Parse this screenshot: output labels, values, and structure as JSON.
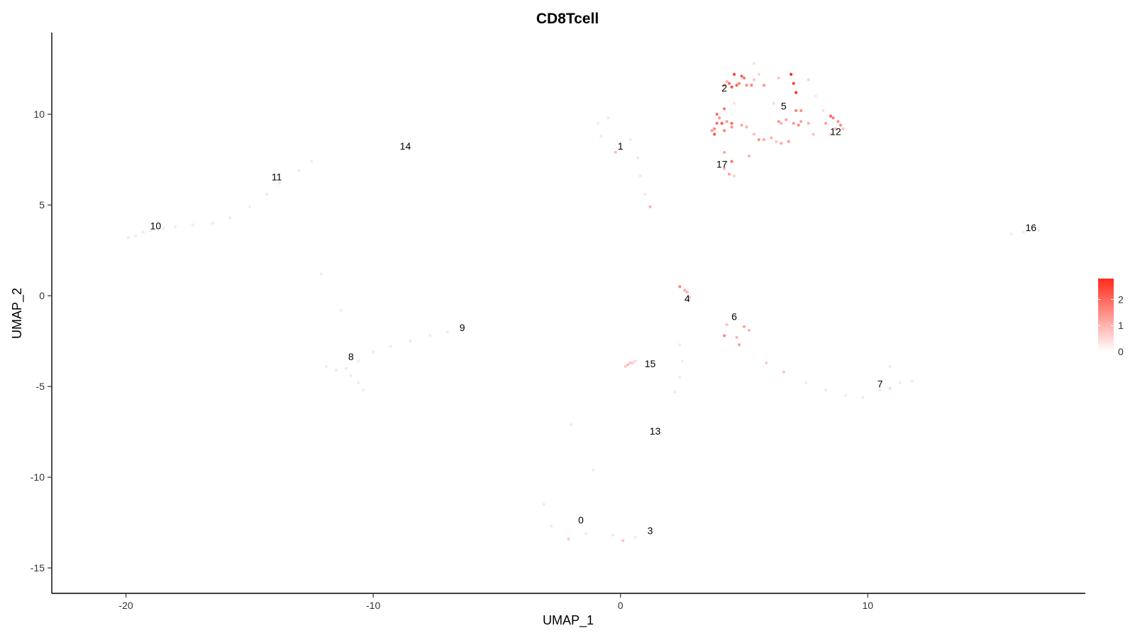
{
  "chart_data": {
    "type": "scatter",
    "title": "CD8Tcell",
    "xlabel": "UMAP_1",
    "ylabel": "UMAP_2",
    "xlim": [
      -23,
      18.8
    ],
    "ylim": [
      -16.4,
      14.5
    ],
    "x_ticks": [
      -20,
      -10,
      0,
      10
    ],
    "y_ticks": [
      -15,
      -10,
      -5,
      0,
      5,
      10
    ],
    "grid": false,
    "color_scale": {
      "low": "#ffffff",
      "high": "#ff2b1c",
      "min": 0,
      "max": 2.8,
      "ticks": [
        0,
        1,
        2
      ]
    },
    "cluster_labels": [
      {
        "label": "0",
        "x": -1.6,
        "y": -12.4
      },
      {
        "label": "1",
        "x": 0.0,
        "y": 8.2
      },
      {
        "label": "2",
        "x": 4.2,
        "y": 11.4
      },
      {
        "label": "3",
        "x": 1.2,
        "y": -13.0
      },
      {
        "label": "4",
        "x": 2.7,
        "y": -0.2
      },
      {
        "label": "5",
        "x": 6.6,
        "y": 10.4
      },
      {
        "label": "6",
        "x": 4.6,
        "y": -1.2
      },
      {
        "label": "7",
        "x": 10.5,
        "y": -4.9
      },
      {
        "label": "8",
        "x": -10.9,
        "y": -3.4
      },
      {
        "label": "9",
        "x": -6.4,
        "y": -1.8
      },
      {
        "label": "10",
        "x": -18.8,
        "y": 3.8
      },
      {
        "label": "11",
        "x": -13.9,
        "y": 6.5
      },
      {
        "label": "12",
        "x": 8.7,
        "y": 9.0
      },
      {
        "label": "13",
        "x": 1.4,
        "y": -7.5
      },
      {
        "label": "14",
        "x": -8.7,
        "y": 8.2
      },
      {
        "label": "15",
        "x": 1.2,
        "y": -3.8
      },
      {
        "label": "16",
        "x": 16.6,
        "y": 3.7
      },
      {
        "label": "17",
        "x": 4.1,
        "y": 7.2
      }
    ],
    "points": [
      [
        4.6,
        12.2,
        2.5
      ],
      [
        4.9,
        12.1,
        2.2
      ],
      [
        5.0,
        12.0,
        1.8
      ],
      [
        4.4,
        11.7,
        2.0
      ],
      [
        4.7,
        11.6,
        2.1
      ],
      [
        4.5,
        11.5,
        2.3
      ],
      [
        4.8,
        11.7,
        1.6
      ],
      [
        5.1,
        11.6,
        1.5
      ],
      [
        5.3,
        11.6,
        1.7
      ],
      [
        5.8,
        11.6,
        1.4
      ],
      [
        4.2,
        11.6,
        1.2
      ],
      [
        4.3,
        11.8,
        1.0
      ],
      [
        5.4,
        11.9,
        0.8
      ],
      [
        5.6,
        12.2,
        0.6
      ],
      [
        5.4,
        12.8,
        0.4
      ],
      [
        6.4,
        12.0,
        0.8
      ],
      [
        7.6,
        11.9,
        0.6
      ],
      [
        6.9,
        12.2,
        2.8
      ],
      [
        7.0,
        11.7,
        2.6
      ],
      [
        7.1,
        11.2,
        2.7
      ],
      [
        4.2,
        10.3,
        1.8
      ],
      [
        3.9,
        10.0,
        2.0
      ],
      [
        4.0,
        9.8,
        1.5
      ],
      [
        4.1,
        9.5,
        2.2
      ],
      [
        3.9,
        9.5,
        1.9
      ],
      [
        4.3,
        9.6,
        1.4
      ],
      [
        3.8,
        9.2,
        1.6
      ],
      [
        3.7,
        9.1,
        1.3
      ],
      [
        3.8,
        8.9,
        2.3
      ],
      [
        4.2,
        9.1,
        1.7
      ],
      [
        4.5,
        9.5,
        2.0
      ],
      [
        4.5,
        9.3,
        1.5
      ],
      [
        4.9,
        9.4,
        1.2
      ],
      [
        5.1,
        9.3,
        1.0
      ],
      [
        5.4,
        8.9,
        0.9
      ],
      [
        5.6,
        8.6,
        1.4
      ],
      [
        5.8,
        8.6,
        1.2
      ],
      [
        6.1,
        8.7,
        1.0
      ],
      [
        6.3,
        8.5,
        0.8
      ],
      [
        6.5,
        8.4,
        1.1
      ],
      [
        6.8,
        8.5,
        1.3
      ],
      [
        6.4,
        9.6,
        1.5
      ],
      [
        6.7,
        9.7,
        1.2
      ],
      [
        6.5,
        9.5,
        1.0
      ],
      [
        7.0,
        9.5,
        1.4
      ],
      [
        7.2,
        9.4,
        1.6
      ],
      [
        7.3,
        9.6,
        1.3
      ],
      [
        7.1,
        10.2,
        1.7
      ],
      [
        7.3,
        10.2,
        1.5
      ],
      [
        7.6,
        9.5,
        1.0
      ],
      [
        7.8,
        8.9,
        0.8
      ],
      [
        8.5,
        9.9,
        2.0
      ],
      [
        8.6,
        9.8,
        1.8
      ],
      [
        8.8,
        9.6,
        1.5
      ],
      [
        8.9,
        9.4,
        1.6
      ],
      [
        8.3,
        9.5,
        1.2
      ],
      [
        8.7,
        9.2,
        1.0
      ],
      [
        9.0,
        9.2,
        0.8
      ],
      [
        8.5,
        8.9,
        0.7
      ],
      [
        4.2,
        7.9,
        1.2
      ],
      [
        4.5,
        7.4,
        1.8
      ],
      [
        5.2,
        7.7,
        1.0
      ],
      [
        4.2,
        7.0,
        0.9
      ],
      [
        4.4,
        6.7,
        1.2
      ],
      [
        4.6,
        6.6,
        0.6
      ],
      [
        4.6,
        10.6,
        0.4
      ],
      [
        6.2,
        10.6,
        0.5
      ],
      [
        7.9,
        11.0,
        0.3
      ],
      [
        8.2,
        10.2,
        0.4
      ],
      [
        -0.2,
        7.9,
        0.9
      ],
      [
        1.2,
        4.9,
        1.0
      ],
      [
        2.4,
        0.5,
        1.6
      ],
      [
        2.6,
        0.3,
        1.2
      ],
      [
        2.7,
        0.2,
        1.0
      ],
      [
        2.8,
        -0.1,
        0.8
      ],
      [
        4.3,
        -1.6,
        0.8
      ],
      [
        5.0,
        -1.7,
        1.2
      ],
      [
        5.2,
        -1.9,
        1.0
      ],
      [
        4.2,
        -2.2,
        1.6
      ],
      [
        4.7,
        -2.3,
        1.0
      ],
      [
        4.8,
        -2.7,
        1.3
      ],
      [
        5.9,
        -3.7,
        0.7
      ],
      [
        6.6,
        -4.2,
        0.8
      ],
      [
        0.2,
        -3.9,
        0.7
      ],
      [
        0.3,
        -3.8,
        0.9
      ],
      [
        0.4,
        -3.7,
        0.8
      ],
      [
        0.5,
        -3.7,
        0.6
      ],
      [
        0.6,
        -3.6,
        0.5
      ],
      [
        10.9,
        -5.1,
        0.5
      ],
      [
        11.8,
        -4.7,
        0.3
      ],
      [
        -2.1,
        -13.4,
        0.7
      ],
      [
        0.1,
        -13.5,
        0.8
      ]
    ],
    "background_points": [
      [
        -19.9,
        3.2
      ],
      [
        -19.6,
        3.3
      ],
      [
        -19.3,
        3.5
      ],
      [
        -19.0,
        3.6
      ],
      [
        -18.5,
        3.7
      ],
      [
        -18.0,
        3.8
      ],
      [
        -17.3,
        3.9
      ],
      [
        -16.5,
        4.0
      ],
      [
        -15.8,
        4.3
      ],
      [
        -15.0,
        4.9
      ],
      [
        -14.3,
        5.6
      ],
      [
        -13.8,
        6.2
      ],
      [
        -13.0,
        6.9
      ],
      [
        -12.5,
        7.4
      ],
      [
        -11.9,
        -3.9
      ],
      [
        -11.5,
        -4.1
      ],
      [
        -11.1,
        -4.0
      ],
      [
        -10.6,
        -3.6
      ],
      [
        -10.0,
        -3.1
      ],
      [
        -9.3,
        -2.8
      ],
      [
        -8.5,
        -2.5
      ],
      [
        -7.7,
        -2.2
      ],
      [
        -7.0,
        -2.0
      ],
      [
        -10.9,
        -4.4
      ],
      [
        -10.6,
        -4.8
      ],
      [
        -10.4,
        -5.2
      ],
      [
        -0.9,
        9.5
      ],
      [
        -0.5,
        9.8
      ],
      [
        -0.8,
        8.8
      ],
      [
        0.4,
        8.6
      ],
      [
        0.7,
        7.6
      ],
      [
        0.8,
        6.6
      ],
      [
        1.0,
        5.6
      ],
      [
        2.4,
        -2.7
      ],
      [
        2.5,
        -3.6
      ],
      [
        2.4,
        -4.5
      ],
      [
        2.2,
        -5.3
      ],
      [
        7.5,
        -4.8
      ],
      [
        8.3,
        -5.2
      ],
      [
        9.1,
        -5.5
      ],
      [
        9.8,
        -5.6
      ],
      [
        10.5,
        -5.2
      ],
      [
        11.3,
        -4.8
      ],
      [
        10.9,
        -3.9
      ],
      [
        -3.1,
        -11.5
      ],
      [
        -2.8,
        -12.7
      ],
      [
        -1.4,
        -13.1
      ],
      [
        -0.3,
        -13.2
      ],
      [
        0.6,
        -13.3
      ],
      [
        -2.0,
        -7.1
      ],
      [
        -1.1,
        -9.6
      ],
      [
        -11.3,
        -0.8
      ],
      [
        -12.1,
        1.2
      ],
      [
        15.8,
        3.4
      ],
      [
        16.3,
        3.5
      ],
      [
        16.9,
        3.6
      ]
    ]
  }
}
